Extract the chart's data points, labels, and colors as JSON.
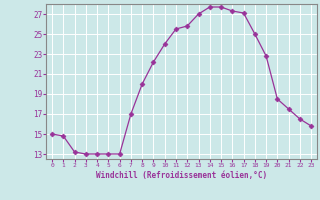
{
  "x": [
    0,
    1,
    2,
    3,
    4,
    5,
    6,
    7,
    8,
    9,
    10,
    11,
    12,
    13,
    14,
    15,
    16,
    17,
    18,
    19,
    20,
    21,
    22,
    23
  ],
  "y": [
    15.0,
    14.8,
    13.2,
    13.0,
    13.0,
    13.0,
    13.0,
    17.0,
    20.0,
    22.2,
    24.0,
    25.5,
    25.8,
    27.0,
    27.7,
    27.7,
    27.3,
    27.1,
    25.0,
    22.8,
    18.5,
    17.5,
    16.5,
    15.8
  ],
  "line_color": "#993399",
  "marker": "D",
  "marker_size": 2.5,
  "bg_color": "#cce8e8",
  "grid_color": "#b0d8d8",
  "xlabel": "Windchill (Refroidissement éolien,°C)",
  "xlabel_color": "#993399",
  "tick_color": "#993399",
  "label_color": "#993399",
  "ylim": [
    12.5,
    28.0
  ],
  "yticks": [
    13,
    15,
    17,
    19,
    21,
    23,
    25,
    27
  ],
  "xlim": [
    -0.5,
    23.5
  ],
  "xticks": [
    0,
    1,
    2,
    3,
    4,
    5,
    6,
    7,
    8,
    9,
    10,
    11,
    12,
    13,
    14,
    15,
    16,
    17,
    18,
    19,
    20,
    21,
    22,
    23
  ],
  "spine_color": "#888888"
}
